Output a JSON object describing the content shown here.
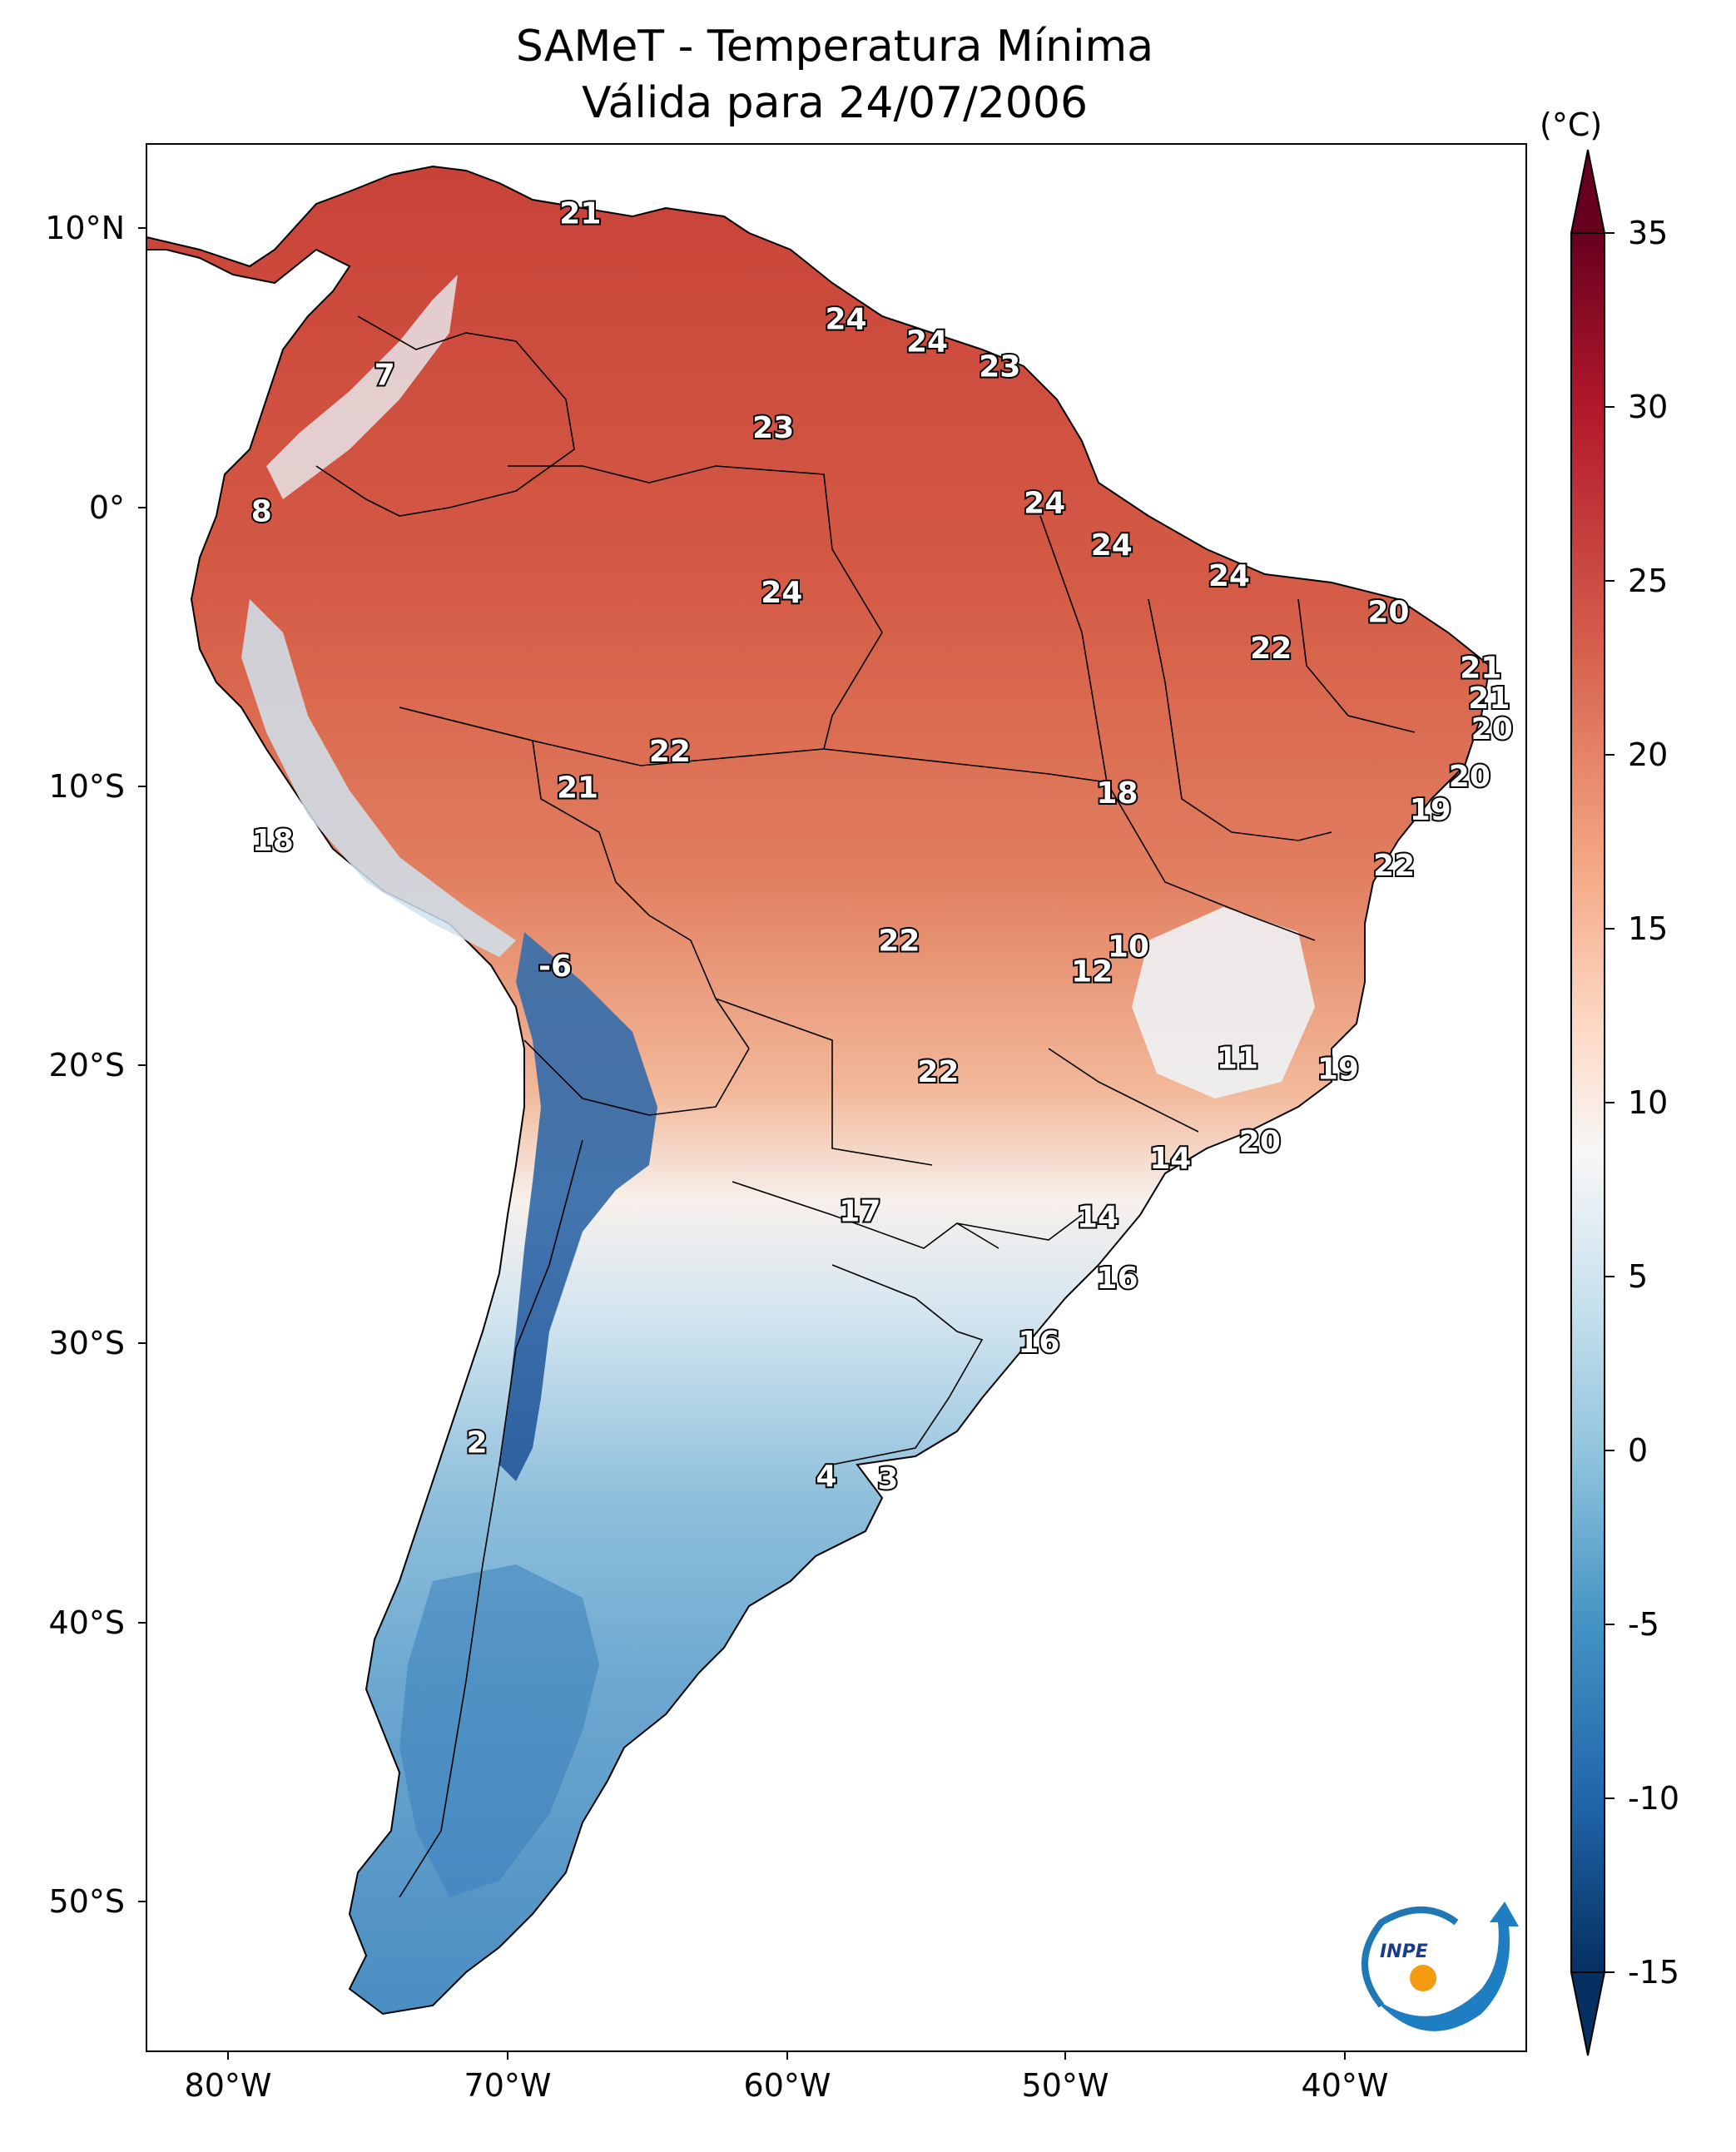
{
  "title_line1": "SAMeT - Temperatura Mínima",
  "title_line2": "Válida para 24/07/2006",
  "colorbar": {
    "unit": "(°C)",
    "ticks": [
      "35",
      "30",
      "25",
      "20",
      "15",
      "10",
      "5",
      "0",
      "-5",
      "-10",
      "-15"
    ],
    "colors": [
      "#67001f",
      "#b2182b",
      "#d6604d",
      "#f4a582",
      "#fddbc7",
      "#f7f7f7",
      "#d1e5f0",
      "#92c5de",
      "#4393c3",
      "#2166ac",
      "#053061"
    ]
  },
  "lat_ticks": [
    "10°N",
    "0°",
    "10°S",
    "20°S",
    "30°S",
    "40°S",
    "50°S"
  ],
  "lon_ticks": [
    "80°W",
    "70°W",
    "60°W",
    "50°W",
    "40°W"
  ],
  "map_labels": [
    {
      "text": "21",
      "lon": -67.4,
      "lat": 10.5
    },
    {
      "text": "24",
      "lon": -57.9,
      "lat": 6.7
    },
    {
      "text": "24",
      "lon": -55.0,
      "lat": 5.9
    },
    {
      "text": "23",
      "lon": -52.4,
      "lat": 5.0
    },
    {
      "text": "7",
      "lon": -74.4,
      "lat": 4.7
    },
    {
      "text": "23",
      "lon": -60.5,
      "lat": 2.8
    },
    {
      "text": "8",
      "lon": -78.8,
      "lat": -0.2
    },
    {
      "text": "24",
      "lon": -50.8,
      "lat": 0.1
    },
    {
      "text": "24",
      "lon": -48.4,
      "lat": -1.4
    },
    {
      "text": "24",
      "lon": -44.2,
      "lat": -2.5
    },
    {
      "text": "24",
      "lon": -60.2,
      "lat": -3.1
    },
    {
      "text": "20",
      "lon": -38.5,
      "lat": -3.8
    },
    {
      "text": "22",
      "lon": -42.7,
      "lat": -5.1
    },
    {
      "text": "21",
      "lon": -35.2,
      "lat": -5.8
    },
    {
      "text": "21",
      "lon": -34.9,
      "lat": -6.9
    },
    {
      "text": "20",
      "lon": -34.8,
      "lat": -8.0
    },
    {
      "text": "22",
      "lon": -64.2,
      "lat": -8.8
    },
    {
      "text": "21",
      "lon": -67.5,
      "lat": -10.1
    },
    {
      "text": "18",
      "lon": -48.2,
      "lat": -10.3
    },
    {
      "text": "20",
      "lon": -35.6,
      "lat": -9.7
    },
    {
      "text": "19",
      "lon": -37.0,
      "lat": -10.9
    },
    {
      "text": "18",
      "lon": -78.4,
      "lat": -12.0
    },
    {
      "text": "22",
      "lon": -38.3,
      "lat": -12.9
    },
    {
      "text": "22",
      "lon": -56.0,
      "lat": -15.6
    },
    {
      "text": "10",
      "lon": -47.8,
      "lat": -15.8
    },
    {
      "text": "12",
      "lon": -49.1,
      "lat": -16.7
    },
    {
      "text": "-6",
      "lon": -68.3,
      "lat": -16.5
    },
    {
      "text": "11",
      "lon": -43.9,
      "lat": -19.8
    },
    {
      "text": "19",
      "lon": -40.3,
      "lat": -20.2
    },
    {
      "text": "22",
      "lon": -54.6,
      "lat": -20.3
    },
    {
      "text": "20",
      "lon": -43.1,
      "lat": -22.8
    },
    {
      "text": "14",
      "lon": -46.3,
      "lat": -23.4
    },
    {
      "text": "17",
      "lon": -57.4,
      "lat": -25.3
    },
    {
      "text": "14",
      "lon": -48.9,
      "lat": -25.5
    },
    {
      "text": "16",
      "lon": -48.2,
      "lat": -27.7
    },
    {
      "text": "16",
      "lon": -51.0,
      "lat": -30.0
    },
    {
      "text": "2",
      "lon": -71.1,
      "lat": -33.6
    },
    {
      "text": "4",
      "lon": -58.6,
      "lat": -34.8
    },
    {
      "text": "3",
      "lon": -56.4,
      "lat": -34.9
    }
  ],
  "logo_text": "INPE",
  "colors": {
    "ocean": "#ffffff",
    "border": "#000000",
    "label_fill": "#ffffff",
    "label_outline": "#000000"
  }
}
